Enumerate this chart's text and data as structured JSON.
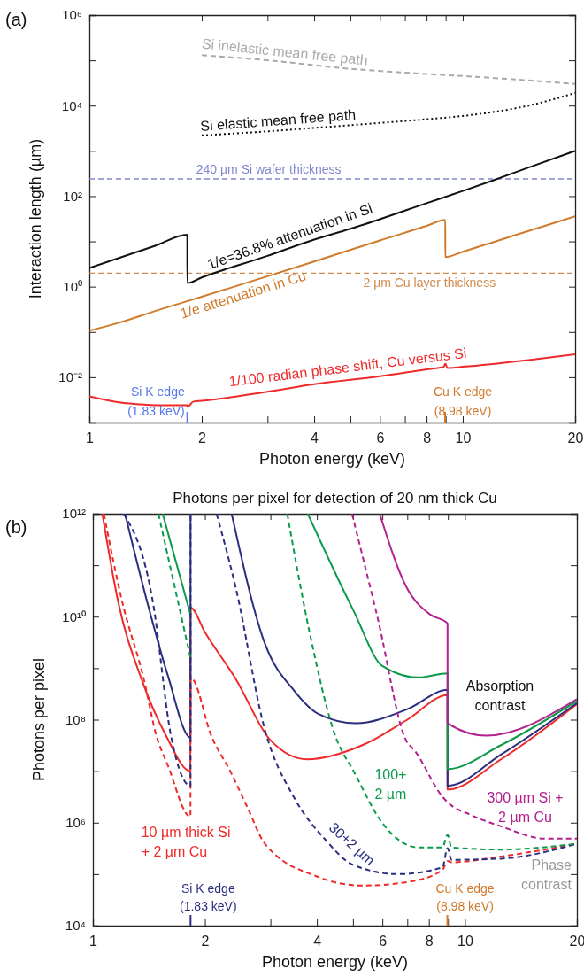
{
  "chart_data": [
    {
      "type": "line",
      "xlabel": "Photon energy (keV)",
      "ylabel": "Interaction length (µm)",
      "log": "xy",
      "xlim": [
        1,
        20
      ],
      "ylim": [
        0.001,
        1000000
      ],
      "xticks": [
        1,
        2,
        {
          "value": 3,
          "label": null
        },
        4,
        {
          "value": 5,
          "label": null
        },
        6,
        {
          "value": 7,
          "label": null
        },
        8,
        {
          "value": 9,
          "label": null
        },
        10,
        20
      ],
      "yticks": [
        {
          "value": 1000000,
          "label": "10⁶"
        },
        {
          "value": 100000,
          "label": null
        },
        {
          "value": 10000,
          "label": "10⁴"
        },
        {
          "value": 1000,
          "label": null
        },
        {
          "value": 100,
          "label": "10²"
        },
        {
          "value": 10,
          "label": null
        },
        {
          "value": 1,
          "label": "10⁰"
        },
        {
          "value": 0.1,
          "label": null
        },
        {
          "value": 0.01,
          "label": "10⁻²"
        }
      ],
      "series": [
        {
          "name": "1/e=36.8% attenuation in Si",
          "color": "#111111",
          "line_style": "solid",
          "x": [
            1,
            1.2,
            1.5,
            1.829,
            1.83,
            2,
            3,
            4,
            5,
            6,
            8,
            10,
            12,
            15,
            20
          ],
          "values": [
            2.6,
            4.3,
            8,
            14,
            1.2,
            1.6,
            4.8,
            11,
            19,
            31,
            70,
            130,
            220,
            430,
            1000
          ]
        },
        {
          "name": "1/e attenuation in Cu",
          "color": "#d07a2c",
          "line_style": "solid",
          "x": [
            1,
            1.2,
            1.5,
            2,
            3,
            4,
            6,
            8,
            8.979,
            8.98,
            10,
            12,
            15,
            20
          ],
          "values": [
            0.107,
            0.16,
            0.29,
            0.6,
            1.7,
            3.6,
            10.5,
            22,
            30,
            4.5,
            5.9,
            9.5,
            17,
            36
          ]
        },
        {
          "name": "1/100 radian phase shift, Cu versus Si",
          "color": "#ee2a2a",
          "line_style": "solid",
          "x": [
            1,
            1.2,
            1.4,
            1.6,
            1.829,
            1.83,
            1.9,
            2,
            3,
            4,
            6,
            8,
            8.9,
            8.98,
            9.1,
            10,
            15,
            20
          ],
          "values": [
            0.0038,
            0.0028,
            0.0025,
            0.0024,
            0.0024,
            0.0022,
            0.0029,
            0.003,
            0.0048,
            0.007,
            0.0105,
            0.015,
            0.017,
            0.02,
            0.016,
            0.017,
            0.024,
            0.032
          ]
        },
        {
          "name": "Si elastic mean free path",
          "color": "#111111",
          "line_style": "dotted",
          "x": [
            2,
            3,
            5,
            8,
            10,
            15,
            20
          ],
          "values": [
            2200,
            2700,
            3700,
            5000,
            5900,
            10000,
            19000
          ]
        },
        {
          "name": "Si inelastic mean free path",
          "color": "#aaaaaa",
          "line_style": "dashed",
          "x": [
            2,
            3,
            5,
            8,
            10,
            15,
            20
          ],
          "values": [
            130000,
            100000,
            65000,
            50000,
            45000,
            36000,
            30000
          ]
        }
      ],
      "ref_lines": [
        {
          "axis": "y",
          "value": 240,
          "label": "240 µm Si wafer thickness",
          "color": "#8088cc",
          "line_style": "dashed"
        },
        {
          "axis": "y",
          "value": 2,
          "label": "2 µm Cu layer thickness",
          "color": "#d08a4c",
          "line_style": "dashed"
        }
      ],
      "annotations": [
        "(a)",
        "Si K edge\n(1.83 keV)",
        "Cu K edge\n(8.98 keV)"
      ]
    },
    {
      "type": "line",
      "title": "Photons per pixel for detection of 20 nm thick Cu",
      "xlabel": "Photon energy (keV)",
      "ylabel": "Photons per pixel",
      "log": "xy",
      "xlim": [
        1,
        20
      ],
      "ylim": [
        10000,
        1000000000000
      ],
      "xticks": [
        1,
        2,
        {
          "value": 3,
          "label": null
        },
        4,
        {
          "value": 5,
          "label": null
        },
        6,
        {
          "value": 7,
          "label": null
        },
        8,
        {
          "value": 9,
          "label": null
        },
        10,
        20
      ],
      "yticks": [
        {
          "value": 1000000000000,
          "label": "10¹²"
        },
        {
          "value": 100000000000,
          "label": null
        },
        {
          "value": 10000000000,
          "label": "10¹⁰"
        },
        {
          "value": 1000000000,
          "label": null
        },
        {
          "value": 100000000,
          "label": "10⁸"
        },
        {
          "value": 10000000,
          "label": null
        },
        {
          "value": 1000000,
          "label": "10⁶"
        },
        {
          "value": 100000,
          "label": null
        },
        {
          "value": 10000,
          "label": "10⁴"
        }
      ],
      "series": [
        {
          "color": "#ee2a2a",
          "line_style": "solid",
          "x": [
            1.06,
            1.17,
            1.35,
            1.57,
            1.829,
            1.83,
            2,
            2.42,
            3,
            3.76,
            5.4,
            7,
            8.979,
            8.98,
            12.5,
            20
          ],
          "values": [
            1000000000000.0,
            19000000000.0,
            620000000.0,
            50000000.0,
            10000000.0,
            15000000000.0,
            5000000000.0,
            620000000.0,
            40000000.0,
            17000000.0,
            34000000.0,
            100000000.0,
            300000000.0,
            4400000.0,
            17000000.0,
            200000000.0
          ]
        },
        {
          "color": "#2b2e7e",
          "line_style": "solid",
          "x": [
            1.22,
            1.4,
            1.59,
            1.829,
            1.83,
            2,
            2.36,
            2.9,
            3.48,
            4.03,
            5.1,
            7,
            8.979,
            8.98,
            12.5,
            20
          ],
          "values": [
            1000000000000.0,
            19000000000.0,
            720000000.0,
            45000000.0,
            1000000000000.0,
            null,
            1000000000000.0,
            3000000000.0,
            360000000.0,
            130000000.0,
            85000000.0,
            160000000.0,
            380000000.0,
            5200000.0,
            21000000.0,
            210000000.0
          ]
        },
        {
          "color": "#0b9a4a",
          "line_style": "solid",
          "x": [
            1.54,
            1.829,
            2.5,
            3.78,
            5.02,
            6,
            7.5,
            8.979,
            8.98,
            12.5,
            20
          ],
          "values": [
            1000000000000.0,
            11000000000.0,
            null,
            1000000000000.0,
            13000000000.0,
            1100000000.0,
            660000000.0,
            790000000.0,
            11000000.0,
            32000000.0,
            230000000.0
          ]
        },
        {
          "color": "#b3218f",
          "line_style": "solid",
          "x": [
            5.9,
            6.97,
            8.07,
            8.979,
            8.98,
            11.4,
            20
          ],
          "values": [
            1000000000000.0,
            37000000000.0,
            11000000000.0,
            7400000000.0,
            85000000.0,
            49000000.0,
            250000000.0
          ]
        },
        {
          "name": "10 µm thick Si\n+ 2 µm Cu",
          "color": "#ee2a2a",
          "line_style": "dashed",
          "x": [
            1.07,
            1.2,
            1.37,
            1.48,
            1.59,
            1.829,
            1.83,
            2.09,
            2.34,
            2.6,
            2.9,
            4,
            5.3,
            7,
            8.7,
            8.98,
            9.2,
            12.5,
            20
          ],
          "values": [
            1000000000000.0,
            19000000000.0,
            620000000.0,
            50000000.0,
            13000000.0,
            1300000.0,
            660000000.0,
            45000000.0,
            10000000.0,
            2000000.0,
            390000.0,
            90000.0,
            60000.0,
            70000.0,
            120000.0,
            180000.0,
            170000.0,
            220000.0,
            390000.0
          ]
        },
        {
          "name": "30+2 µm",
          "color": "#2b2e7e",
          "line_style": "dashed",
          "x": [
            1.21,
            1.45,
            1.62,
            1.829,
            1.83,
            2,
            2.15,
            2.42,
            2.9,
            3.48,
            4.19,
            5.02,
            6.6,
            8.7,
            8.98,
            9.2,
            12.5,
            20
          ],
          "values": [
            1000000000000.0,
            19000000000.0,
            50000000.0,
            5200000.0,
            1000000000000.0,
            null,
            1000000000000.0,
            37000000000.0,
            63000000.0,
            3000000.0,
            490000.0,
            150000.0,
            100000.0,
            135000.0,
            320000.0,
            190000.0,
            200000.0,
            390000.0
          ]
        },
        {
          "name": "100+\n2 µm",
          "color": "#0b9a4a",
          "line_style": "dashed",
          "x": [
            1.5,
            1.829,
            2.5,
            3.33,
            3.82,
            4.5,
            5.02,
            6,
            7.5,
            8.7,
            8.98,
            9.2,
            12.5,
            20
          ],
          "values": [
            1000000000000.0,
            1600000000.0,
            null,
            1000000000000.0,
            5100000000.0,
            45000000.0,
            10000000.0,
            980000.0,
            330000.0,
            330000.0,
            580000.0,
            330000.0,
            300000.0,
            390000.0
          ]
        },
        {
          "name": "300 µm Si +\n2 µm Cu",
          "color": "#b3218f",
          "line_style": "dashed",
          "x": [
            4.97,
            5.82,
            6.97,
            7.3,
            8.7,
            8.98,
            10.4,
            12.5,
            16.4,
            20
          ],
          "values": [
            1000000000000.0,
            9800000000.0,
            38000000.0,
            26000000.0,
            3200000.0,
            2500000.0,
            1400000.0,
            850000.0,
            490000.0,
            490000.0
          ]
        }
      ],
      "annotations": [
        "(b)",
        "Absorption\ncontrast",
        "Phase\ncontrast",
        "Si K edge\n(1.83 keV)",
        "Cu K edge\n(8.98 keV)"
      ]
    }
  ]
}
